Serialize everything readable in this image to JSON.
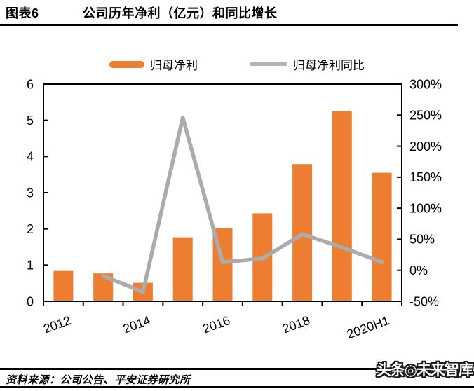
{
  "header": {
    "figure_label": "图表6",
    "title": "公司历年净利（亿元）和同比增长"
  },
  "legend": [
    {
      "label": "归母净利",
      "type": "bar",
      "color": "#ED7D31"
    },
    {
      "label": "归母净利同比",
      "type": "line",
      "color": "#B3B3B3"
    }
  ],
  "chart_data": {
    "type": "bar+line combo",
    "categories": [
      "2012",
      "2013",
      "2014",
      "2015",
      "2016",
      "2017",
      "2018",
      "2019",
      "2020H1"
    ],
    "x_ticks": [
      {
        "index": 0,
        "label": "2012"
      },
      {
        "index": 2,
        "label": "2014"
      },
      {
        "index": 4,
        "label": "2016"
      },
      {
        "index": 6,
        "label": "2018"
      },
      {
        "index": 8,
        "label": "2020H1"
      }
    ],
    "series": [
      {
        "name": "归母净利",
        "type": "bar",
        "axis": "left",
        "color": "#ED7D31",
        "values": [
          0.84,
          0.77,
          0.51,
          1.77,
          2.02,
          2.43,
          3.79,
          5.25,
          3.55
        ]
      },
      {
        "name": "归母净利同比",
        "type": "line",
        "axis": "right",
        "color": "#ABABAB",
        "values": [
          null,
          -9,
          -35,
          246,
          13,
          19,
          58,
          37,
          13
        ]
      }
    ],
    "left_axis": {
      "min": 0,
      "max": 6,
      "step": 1,
      "tick_labels": [
        "0",
        "1",
        "2",
        "3",
        "4",
        "5",
        "6"
      ]
    },
    "right_axis": {
      "min": -50,
      "max": 300,
      "step": 50,
      "suffix": "%",
      "tick_labels": [
        "-50%",
        "0%",
        "50%",
        "100%",
        "150%",
        "200%",
        "250%",
        "300%"
      ]
    },
    "grid": false,
    "legend_position": "top-center",
    "plot_border_color": "#000000"
  },
  "footer": {
    "source": "资料来源：公司公告、平安证券研究所",
    "watermark": "头条◎未来智库"
  }
}
